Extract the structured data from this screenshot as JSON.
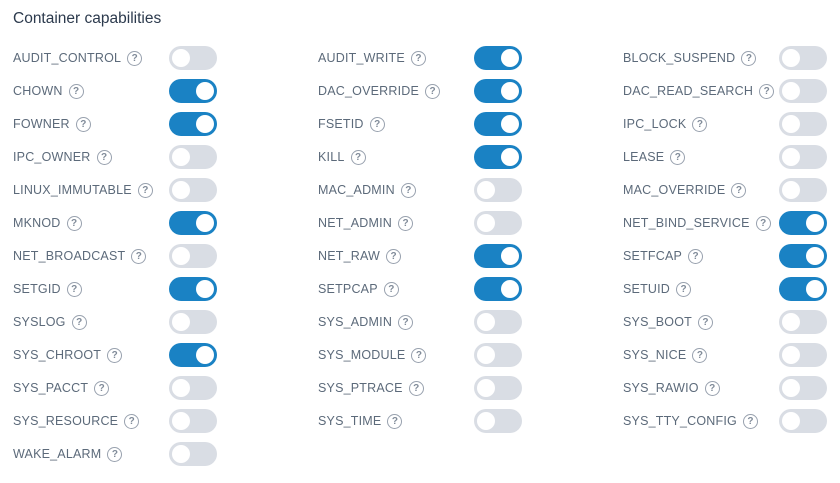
{
  "page": {
    "title": "Container capabilities"
  },
  "capabilities": {
    "help_glyph": "?",
    "colors": {
      "toggle_on": "#1a82c4",
      "toggle_off": "#d9dde4",
      "label": "#5c6a7a",
      "title": "#2c3a4d"
    },
    "items": [
      {
        "label": "AUDIT_CONTROL",
        "enabled": false
      },
      {
        "label": "AUDIT_WRITE",
        "enabled": true
      },
      {
        "label": "BLOCK_SUSPEND",
        "enabled": false
      },
      {
        "label": "CHOWN",
        "enabled": true
      },
      {
        "label": "DAC_OVERRIDE",
        "enabled": true
      },
      {
        "label": "DAC_READ_SEARCH",
        "enabled": false
      },
      {
        "label": "FOWNER",
        "enabled": true
      },
      {
        "label": "FSETID",
        "enabled": true
      },
      {
        "label": "IPC_LOCK",
        "enabled": false
      },
      {
        "label": "IPC_OWNER",
        "enabled": false
      },
      {
        "label": "KILL",
        "enabled": true
      },
      {
        "label": "LEASE",
        "enabled": false
      },
      {
        "label": "LINUX_IMMUTABLE",
        "enabled": false
      },
      {
        "label": "MAC_ADMIN",
        "enabled": false
      },
      {
        "label": "MAC_OVERRIDE",
        "enabled": false
      },
      {
        "label": "MKNOD",
        "enabled": true
      },
      {
        "label": "NET_ADMIN",
        "enabled": false
      },
      {
        "label": "NET_BIND_SERVICE",
        "enabled": true
      },
      {
        "label": "NET_BROADCAST",
        "enabled": false
      },
      {
        "label": "NET_RAW",
        "enabled": true
      },
      {
        "label": "SETFCAP",
        "enabled": true
      },
      {
        "label": "SETGID",
        "enabled": true
      },
      {
        "label": "SETPCAP",
        "enabled": true
      },
      {
        "label": "SETUID",
        "enabled": true
      },
      {
        "label": "SYSLOG",
        "enabled": false
      },
      {
        "label": "SYS_ADMIN",
        "enabled": false
      },
      {
        "label": "SYS_BOOT",
        "enabled": false
      },
      {
        "label": "SYS_CHROOT",
        "enabled": true
      },
      {
        "label": "SYS_MODULE",
        "enabled": false
      },
      {
        "label": "SYS_NICE",
        "enabled": false
      },
      {
        "label": "SYS_PACCT",
        "enabled": false
      },
      {
        "label": "SYS_PTRACE",
        "enabled": false
      },
      {
        "label": "SYS_RAWIO",
        "enabled": false
      },
      {
        "label": "SYS_RESOURCE",
        "enabled": false
      },
      {
        "label": "SYS_TIME",
        "enabled": false
      },
      {
        "label": "SYS_TTY_CONFIG",
        "enabled": false
      },
      {
        "label": "WAKE_ALARM",
        "enabled": false
      }
    ]
  }
}
